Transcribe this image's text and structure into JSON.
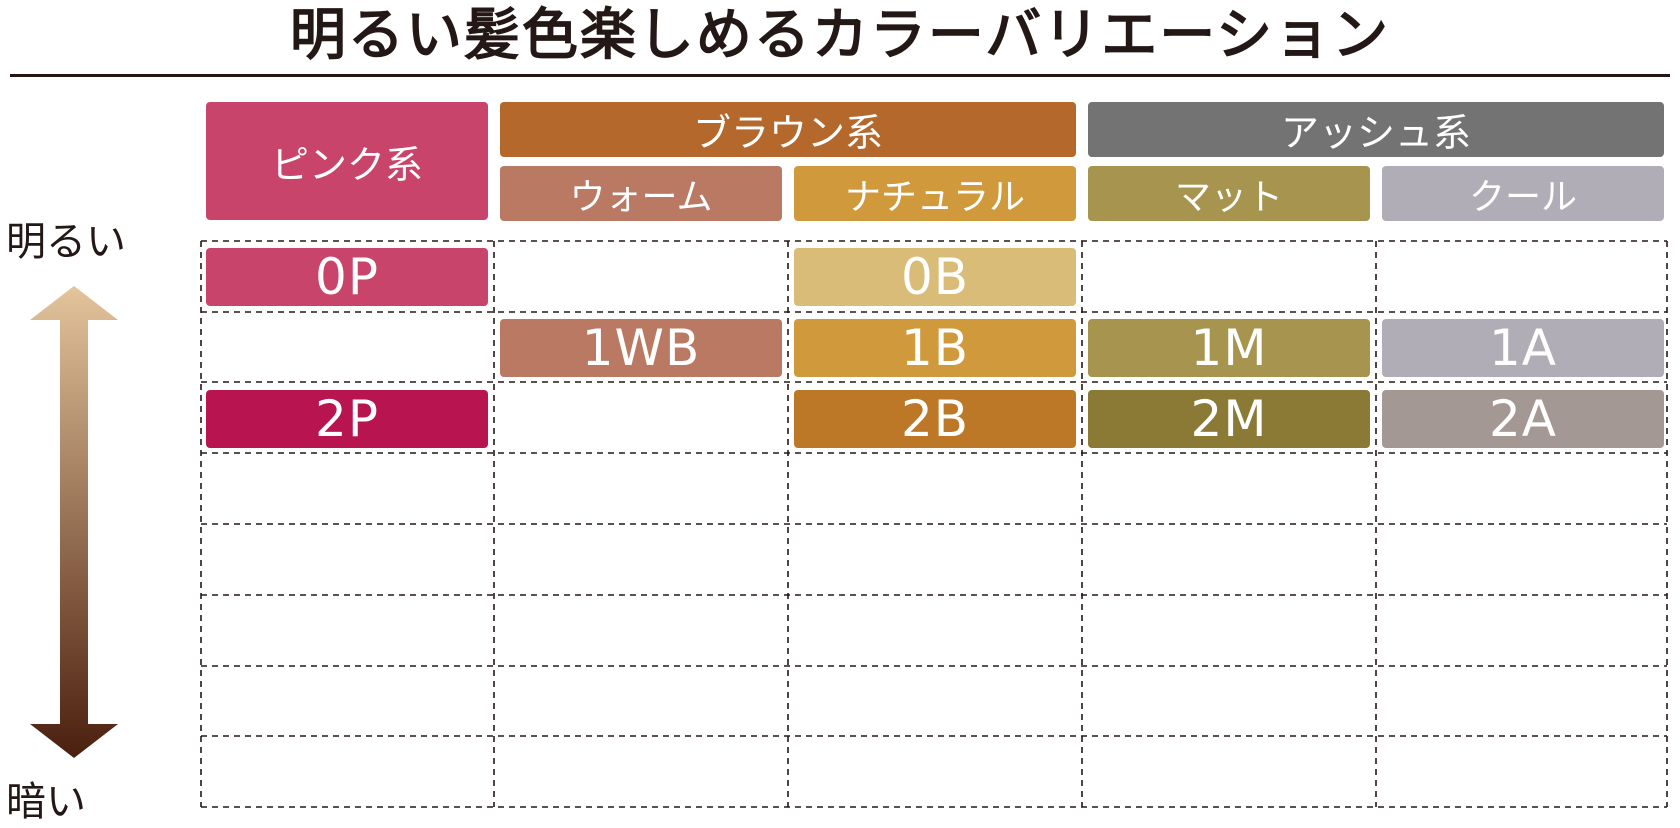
{
  "title": "明るい髪色楽しめるカラーバリエーション",
  "scale": {
    "bright_label": "明るい",
    "dark_label": "暗い"
  },
  "categories": {
    "pink": "ピンク系",
    "brown": "ブラウン系",
    "ash": "アッシュ系"
  },
  "subcategories": {
    "warm": "ウォーム",
    "natural": "ナチュラル",
    "matte": "マット",
    "cool": "クール"
  },
  "shades": {
    "0P": "0P",
    "0B": "0B",
    "1WB": "1WB",
    "1B": "1B",
    "1M": "1M",
    "1A": "1A",
    "2P": "2P",
    "2B": "2B",
    "2M": "2M",
    "2A": "2A"
  },
  "colors": {
    "pink_header": "#C8446B",
    "brown_header": "#B4682C",
    "ash_header": "#737373",
    "warm": "#B97962",
    "natural": "#D09A3C",
    "matte": "#A6944F",
    "cool": "#B1ADB6",
    "0P": "#C8446B",
    "0B": "#D9BC77",
    "1WB": "#B97962",
    "1B": "#D09A3C",
    "1M": "#A6944F",
    "1A": "#B1ADB6",
    "2P": "#B71450",
    "2B": "#BC7826",
    "2M": "#8B7A36",
    "2A": "#A49894",
    "arrow_top": "#E3C49B",
    "arrow_bottom": "#4B1F0E"
  }
}
